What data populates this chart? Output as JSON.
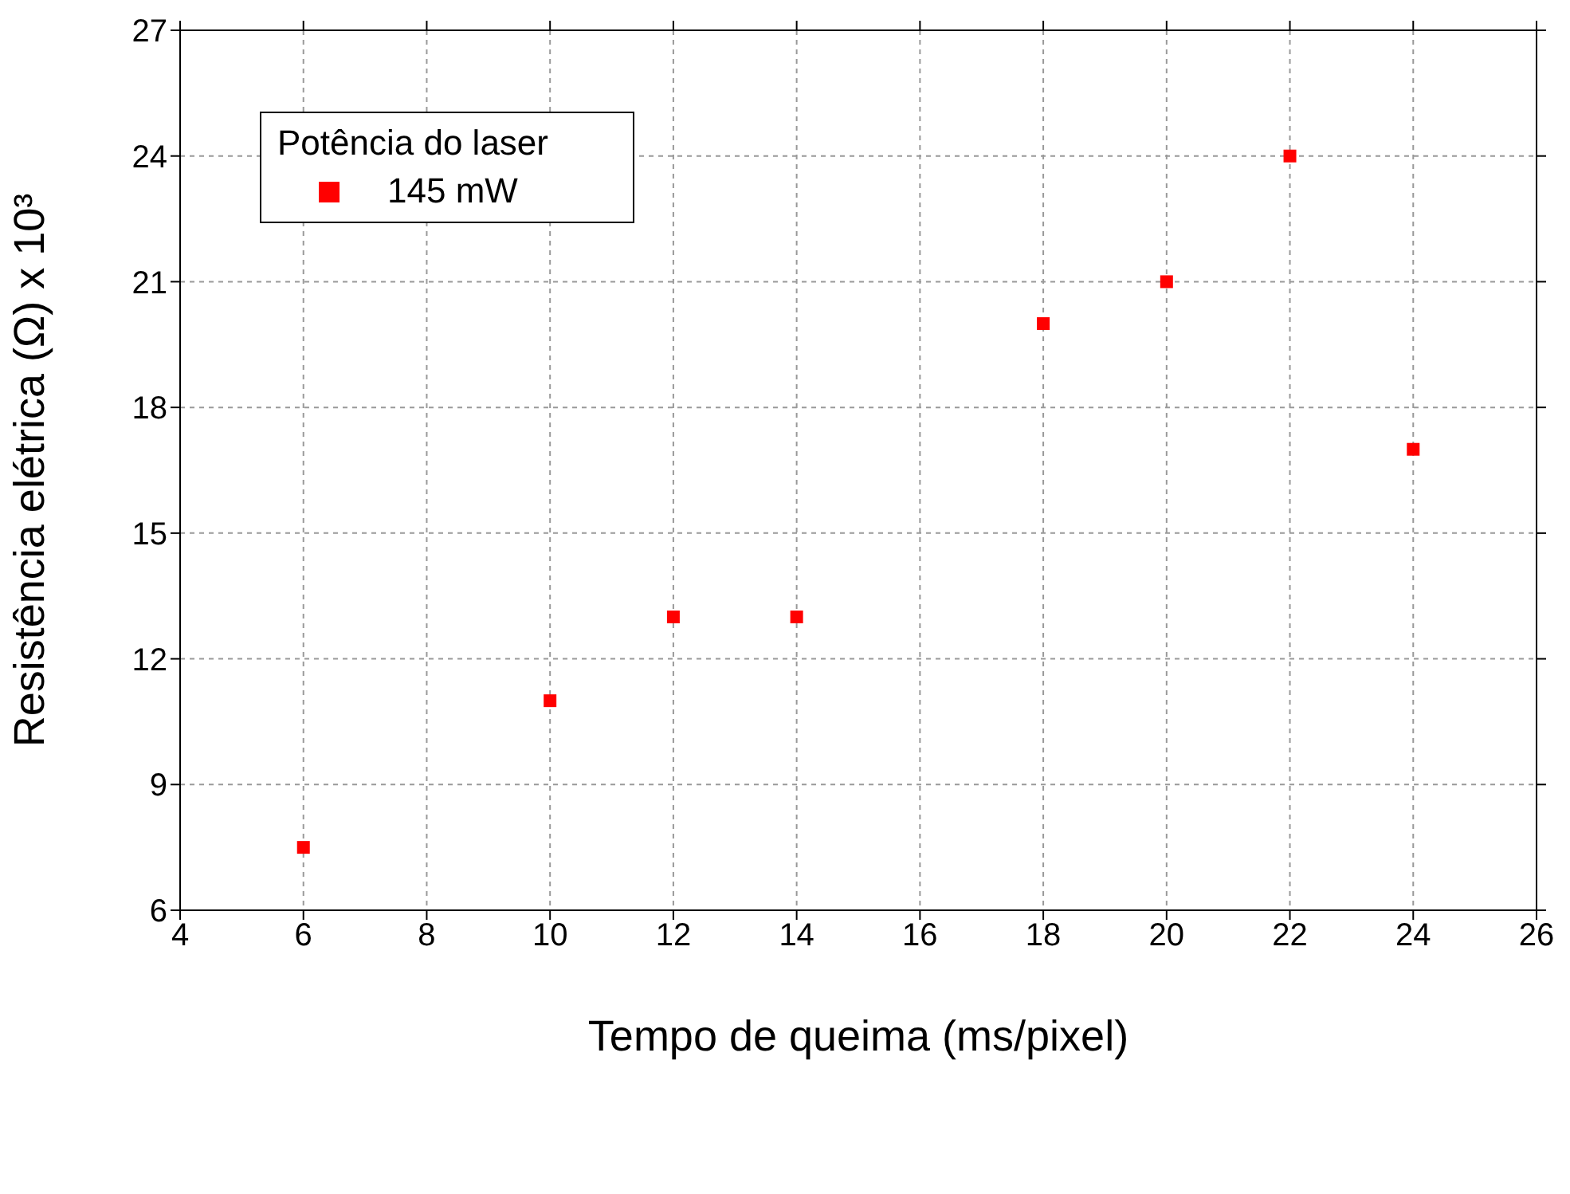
{
  "chart_data": {
    "type": "scatter",
    "xlabel": "Tempo de queima (ms/pixel)",
    "ylabel": "Resistência elétrica (Ω) x 10³",
    "legend_title": "Potência do laser",
    "x": [
      6,
      10,
      12,
      14,
      18,
      20,
      22,
      24
    ],
    "series": [
      {
        "name": "145 mW",
        "color": "#ff0000",
        "values": [
          7.5,
          11,
          13,
          13,
          20,
          21,
          24,
          17
        ]
      }
    ],
    "xlim": [
      4,
      26
    ],
    "xticks": [
      4,
      6,
      8,
      10,
      12,
      14,
      16,
      18,
      20,
      22,
      24,
      26
    ],
    "ylim": [
      6,
      27
    ],
    "yticks": [
      6,
      9,
      12,
      15,
      18,
      21,
      24,
      27
    ],
    "grid": true,
    "legend": "top left",
    "marker": "square"
  }
}
